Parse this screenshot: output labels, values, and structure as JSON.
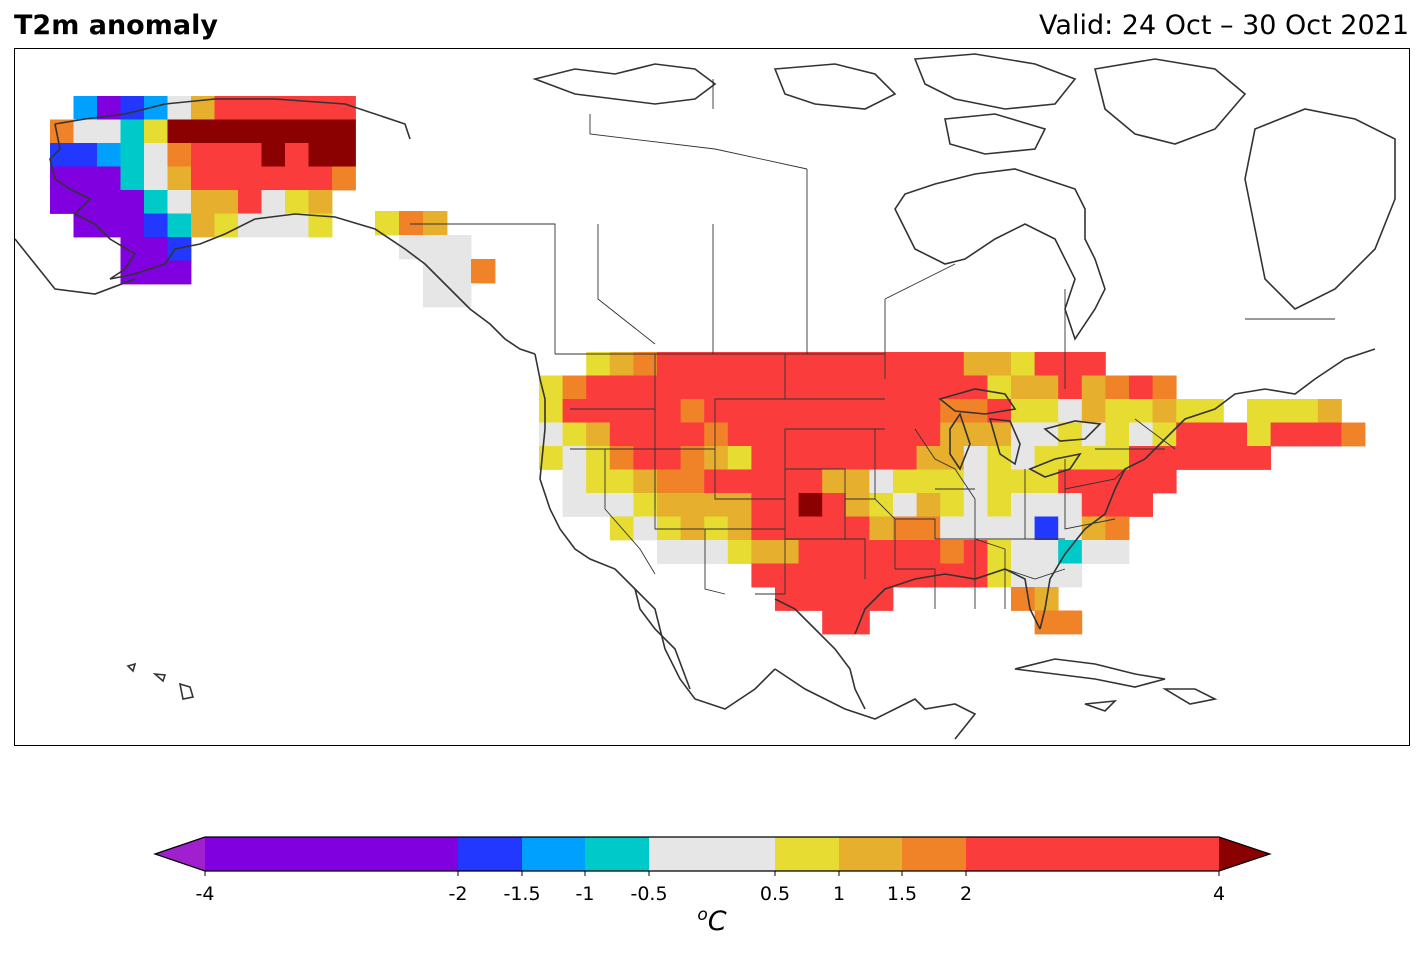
{
  "header": {
    "title": "T2m anomaly",
    "valid": "Valid: 24 Oct – 30 Oct 2021"
  },
  "colorbar": {
    "unit_sup": "o",
    "unit_main": "C",
    "ticks": [
      "-4",
      "-2",
      "-1.5",
      "-1",
      "-0.5",
      "0.5",
      "1",
      "1.5",
      "2",
      "4"
    ],
    "bins": [
      {
        "from": -4,
        "to": -2,
        "color": "#8000df"
      },
      {
        "from": -2,
        "to": -1.5,
        "color": "#2238ff"
      },
      {
        "from": -1.5,
        "to": -1,
        "color": "#00a0ff"
      },
      {
        "from": -1,
        "to": -0.5,
        "color": "#00c9c9"
      },
      {
        "from": -0.5,
        "to": 0.5,
        "color": "#e6e6e6"
      },
      {
        "from": 0.5,
        "to": 1,
        "color": "#e6dc32"
      },
      {
        "from": 1,
        "to": 1.5,
        "color": "#e6af2d"
      },
      {
        "from": 1.5,
        "to": 2,
        "color": "#f08228"
      },
      {
        "from": 2,
        "to": 4,
        "color": "#fa3c3c"
      }
    ],
    "under_color": "#a020d0",
    "over_color": "#8b0000"
  },
  "map": {
    "region": "North America",
    "color_key": {
      "P": "#8000df",
      "B": "#2238ff",
      "C": "#00a0ff",
      "T": "#00c9c9",
      "W": "#e6e6e6",
      "Y": "#e6dc32",
      "G": "#e6af2d",
      "O": "#f08228",
      "R": "#fa3c3c",
      "D": "#8b0000"
    }
  }
}
